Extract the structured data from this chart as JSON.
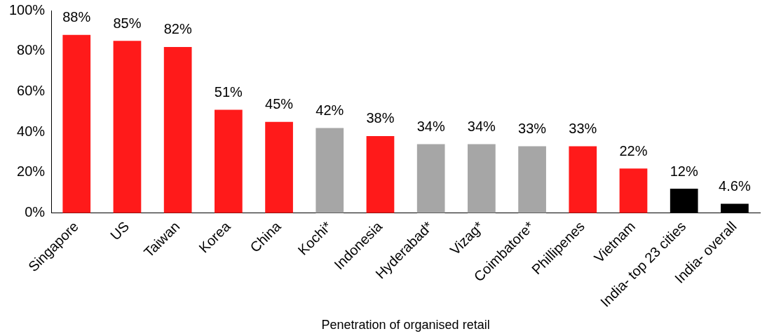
{
  "chart_data": {
    "type": "bar",
    "xlabel": "Penetration of organised retail",
    "categories": [
      "Singapore",
      "US",
      "Taiwan",
      "Korea",
      "China",
      "Kochi*",
      "Indonesia",
      "Hyderabad*",
      "Vizag*",
      "Coimbatore*",
      "Phillipenes",
      "Vietnam",
      "India- top 23 cities",
      "India- overall"
    ],
    "values": [
      88,
      85,
      82,
      51,
      45,
      42,
      38,
      34,
      34,
      33,
      33,
      22,
      12,
      4.6
    ],
    "value_labels": [
      "88%",
      "85%",
      "82%",
      "51%",
      "45%",
      "42%",
      "38%",
      "34%",
      "34%",
      "33%",
      "33%",
      "22%",
      "12%",
      "4.6%"
    ],
    "colors": [
      "#ff1a1a",
      "#ff1a1a",
      "#ff1a1a",
      "#ff1a1a",
      "#ff1a1a",
      "#a6a6a6",
      "#ff1a1a",
      "#a6a6a6",
      "#a6a6a6",
      "#a6a6a6",
      "#ff1a1a",
      "#ff1a1a",
      "#000000",
      "#000000"
    ],
    "ylim": [
      0,
      100
    ],
    "yticks": [
      {
        "value": 0,
        "label": "0%"
      },
      {
        "value": 20,
        "label": "20%"
      },
      {
        "value": 40,
        "label": "40%"
      },
      {
        "value": 60,
        "label": "60%"
      },
      {
        "value": 80,
        "label": "80%"
      },
      {
        "value": 100,
        "label": "100%"
      }
    ],
    "grid": false,
    "legend": false
  }
}
